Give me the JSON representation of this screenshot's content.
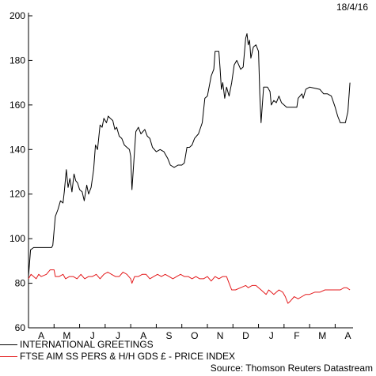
{
  "date_stamp": "18/4/16",
  "source": "Source: Thomson Reuters Datastream",
  "colors": {
    "series1": "#000000",
    "series2": "#e41a1c",
    "axis": "#000000"
  },
  "chart_data": {
    "type": "line",
    "title": "",
    "xlabel": "",
    "ylabel": "",
    "ylim": [
      60,
      200
    ],
    "yticks": [
      60,
      80,
      100,
      120,
      140,
      160,
      180,
      200
    ],
    "xlim": [
      0,
      12.7
    ],
    "xtick_labels": [
      "A",
      "M",
      "J",
      "J",
      "A",
      "S",
      "O",
      "N",
      "D",
      "J",
      "F",
      "M",
      "A"
    ],
    "grid": false,
    "legend_position": "bottom-left",
    "series": [
      {
        "name": "INTERNATIONAL GREETINGS",
        "color": "#000000",
        "points": [
          [
            0.0,
            83
          ],
          [
            0.08,
            95
          ],
          [
            0.2,
            96
          ],
          [
            0.5,
            96
          ],
          [
            0.9,
            96
          ],
          [
            0.95,
            97
          ],
          [
            1.05,
            110
          ],
          [
            1.15,
            113
          ],
          [
            1.25,
            117
          ],
          [
            1.35,
            116
          ],
          [
            1.4,
            121
          ],
          [
            1.48,
            131
          ],
          [
            1.55,
            123
          ],
          [
            1.62,
            127
          ],
          [
            1.7,
            121
          ],
          [
            1.78,
            129
          ],
          [
            1.85,
            126
          ],
          [
            1.92,
            125
          ],
          [
            2.0,
            122
          ],
          [
            2.1,
            121
          ],
          [
            2.18,
            117
          ],
          [
            2.28,
            124
          ],
          [
            2.35,
            120
          ],
          [
            2.45,
            123
          ],
          [
            2.55,
            131
          ],
          [
            2.62,
            142
          ],
          [
            2.7,
            140
          ],
          [
            2.8,
            151
          ],
          [
            2.88,
            150
          ],
          [
            2.95,
            154
          ],
          [
            3.05,
            152
          ],
          [
            3.12,
            155
          ],
          [
            3.2,
            154
          ],
          [
            3.3,
            153
          ],
          [
            3.38,
            149
          ],
          [
            3.45,
            150
          ],
          [
            3.55,
            146
          ],
          [
            3.65,
            145
          ],
          [
            3.75,
            142
          ],
          [
            3.85,
            141
          ],
          [
            3.95,
            140
          ],
          [
            4.0,
            137
          ],
          [
            4.05,
            122
          ],
          [
            4.1,
            131
          ],
          [
            4.2,
            148
          ],
          [
            4.3,
            150
          ],
          [
            4.4,
            147
          ],
          [
            4.55,
            149
          ],
          [
            4.65,
            146
          ],
          [
            4.75,
            145
          ],
          [
            4.85,
            141
          ],
          [
            5.0,
            139
          ],
          [
            5.15,
            140
          ],
          [
            5.3,
            139
          ],
          [
            5.45,
            136
          ],
          [
            5.55,
            133
          ],
          [
            5.7,
            132
          ],
          [
            5.85,
            133
          ],
          [
            6.0,
            133
          ],
          [
            6.1,
            134
          ],
          [
            6.2,
            141
          ],
          [
            6.3,
            141
          ],
          [
            6.4,
            142
          ],
          [
            6.5,
            145
          ],
          [
            6.65,
            147
          ],
          [
            6.8,
            152
          ],
          [
            6.9,
            163
          ],
          [
            7.0,
            164
          ],
          [
            7.15,
            173
          ],
          [
            7.25,
            176
          ],
          [
            7.3,
            184
          ],
          [
            7.45,
            184
          ],
          [
            7.5,
            176
          ],
          [
            7.55,
            167
          ],
          [
            7.6,
            170
          ],
          [
            7.68,
            163
          ],
          [
            7.75,
            168
          ],
          [
            7.85,
            164
          ],
          [
            7.95,
            170
          ],
          [
            8.05,
            178
          ],
          [
            8.15,
            180
          ],
          [
            8.3,
            176
          ],
          [
            8.4,
            177
          ],
          [
            8.5,
            190
          ],
          [
            8.55,
            192
          ],
          [
            8.6,
            187
          ],
          [
            8.65,
            189
          ],
          [
            8.7,
            181
          ],
          [
            8.8,
            186
          ],
          [
            8.9,
            187
          ],
          [
            9.0,
            184
          ],
          [
            9.05,
            165
          ],
          [
            9.1,
            152
          ],
          [
            9.2,
            168
          ],
          [
            9.35,
            168
          ],
          [
            9.45,
            166
          ],
          [
            9.5,
            160
          ],
          [
            9.6,
            162
          ],
          [
            9.7,
            161
          ],
          [
            9.8,
            164
          ],
          [
            9.9,
            161
          ],
          [
            10.1,
            159
          ],
          [
            10.5,
            159
          ],
          [
            10.55,
            163
          ],
          [
            10.7,
            165
          ],
          [
            10.75,
            163
          ],
          [
            10.85,
            167
          ],
          [
            11.0,
            168
          ],
          [
            11.4,
            167
          ],
          [
            11.55,
            165
          ],
          [
            11.7,
            165
          ],
          [
            11.85,
            164
          ],
          [
            12.0,
            159
          ],
          [
            12.1,
            155
          ],
          [
            12.2,
            152
          ],
          [
            12.4,
            152
          ],
          [
            12.5,
            157
          ],
          [
            12.58,
            170
          ]
        ]
      },
      {
        "name": "FTSE AIM SS PERS & H/H GDS £ - PRICE INDEX",
        "color": "#e41a1c",
        "points": [
          [
            0.0,
            82
          ],
          [
            0.1,
            84
          ],
          [
            0.2,
            83
          ],
          [
            0.3,
            82
          ],
          [
            0.4,
            84
          ],
          [
            0.5,
            83
          ],
          [
            0.7,
            84
          ],
          [
            0.85,
            86
          ],
          [
            1.0,
            86
          ],
          [
            1.05,
            83
          ],
          [
            1.2,
            83
          ],
          [
            1.35,
            84
          ],
          [
            1.45,
            82
          ],
          [
            1.6,
            83
          ],
          [
            1.75,
            83
          ],
          [
            1.9,
            82
          ],
          [
            2.05,
            84
          ],
          [
            2.2,
            82
          ],
          [
            2.35,
            83
          ],
          [
            2.5,
            83
          ],
          [
            2.65,
            84
          ],
          [
            2.8,
            82
          ],
          [
            2.95,
            84
          ],
          [
            3.1,
            85
          ],
          [
            3.25,
            84
          ],
          [
            3.4,
            83
          ],
          [
            3.55,
            83
          ],
          [
            3.7,
            85
          ],
          [
            3.85,
            84
          ],
          [
            4.0,
            82
          ],
          [
            4.05,
            80
          ],
          [
            4.15,
            83
          ],
          [
            4.3,
            83
          ],
          [
            4.45,
            84
          ],
          [
            4.6,
            84
          ],
          [
            4.75,
            82
          ],
          [
            4.9,
            83
          ],
          [
            5.05,
            84
          ],
          [
            5.2,
            83
          ],
          [
            5.35,
            84
          ],
          [
            5.5,
            83
          ],
          [
            5.65,
            82
          ],
          [
            5.8,
            83
          ],
          [
            5.95,
            84
          ],
          [
            6.1,
            83
          ],
          [
            6.25,
            83
          ],
          [
            6.4,
            82
          ],
          [
            6.55,
            83
          ],
          [
            6.7,
            82
          ],
          [
            6.85,
            82
          ],
          [
            7.0,
            83
          ],
          [
            7.15,
            81
          ],
          [
            7.3,
            83
          ],
          [
            7.45,
            82
          ],
          [
            7.6,
            83
          ],
          [
            7.75,
            83
          ],
          [
            7.85,
            80
          ],
          [
            7.95,
            77
          ],
          [
            8.1,
            77
          ],
          [
            8.3,
            78
          ],
          [
            8.5,
            79
          ],
          [
            8.6,
            78
          ],
          [
            8.75,
            79
          ],
          [
            8.9,
            79
          ],
          [
            9.0,
            78
          ],
          [
            9.1,
            77
          ],
          [
            9.2,
            76
          ],
          [
            9.3,
            75
          ],
          [
            9.4,
            77
          ],
          [
            9.5,
            76
          ],
          [
            9.6,
            75
          ],
          [
            9.8,
            77
          ],
          [
            9.95,
            76
          ],
          [
            10.05,
            74
          ],
          [
            10.15,
            71
          ],
          [
            10.25,
            72
          ],
          [
            10.4,
            74
          ],
          [
            10.55,
            73
          ],
          [
            10.7,
            74
          ],
          [
            10.85,
            75
          ],
          [
            11.0,
            75
          ],
          [
            11.2,
            76
          ],
          [
            11.4,
            76
          ],
          [
            11.6,
            77
          ],
          [
            11.8,
            77
          ],
          [
            12.0,
            77
          ],
          [
            12.2,
            77
          ],
          [
            12.35,
            78
          ],
          [
            12.45,
            78
          ],
          [
            12.58,
            77
          ]
        ]
      }
    ]
  }
}
